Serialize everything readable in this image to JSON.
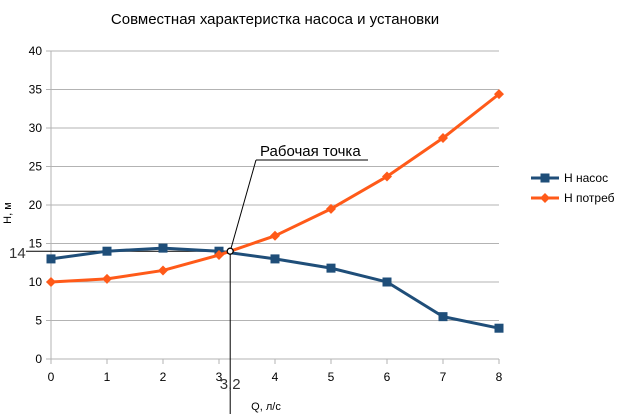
{
  "chart_data": {
    "type": "line",
    "title": "Совместная характеристка насоса и установки",
    "xlabel": "Q, л/с",
    "ylabel": "H, м",
    "x": [
      0,
      1,
      2,
      3,
      4,
      5,
      6,
      7,
      8
    ],
    "xlim": [
      0,
      8
    ],
    "ylim": [
      0,
      40
    ],
    "xticks": [
      "0",
      "1",
      "2",
      "3",
      "4",
      "5",
      "6",
      "7",
      "8"
    ],
    "yticks": [
      "0",
      "5",
      "10",
      "15",
      "20",
      "25",
      "30",
      "35",
      "40"
    ],
    "grid": "horizontal",
    "legend_position": "right",
    "series": [
      {
        "name": "H насос",
        "color": "#1f4e79",
        "marker": "square",
        "values": [
          13.0,
          14.0,
          14.4,
          14.0,
          13.0,
          11.8,
          10.0,
          5.5,
          4.0
        ]
      },
      {
        "name": "H потреб",
        "color": "#ff5a19",
        "marker": "diamond",
        "values": [
          10.0,
          10.4,
          11.5,
          13.5,
          16.0,
          19.5,
          23.7,
          28.7,
          34.4
        ]
      }
    ],
    "annotation": {
      "label": "Рабочая точка",
      "point": [
        3.2,
        14
      ],
      "x_label": "3,2",
      "y_label": "14"
    }
  }
}
